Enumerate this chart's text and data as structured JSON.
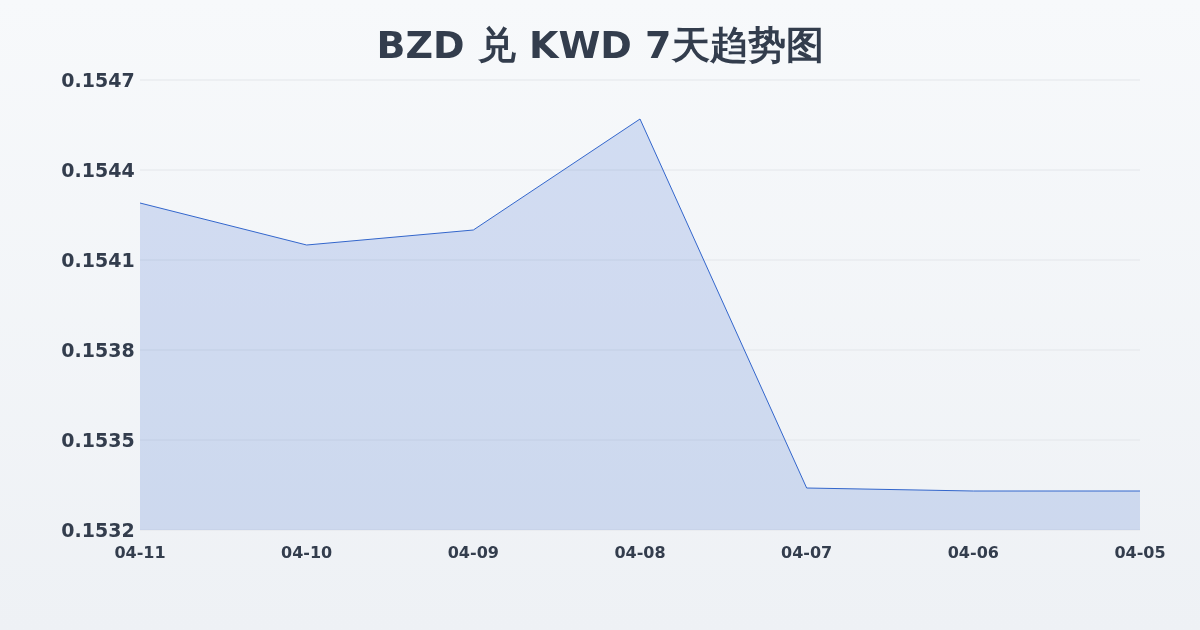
{
  "chart_data": {
    "type": "area",
    "title": "BZD 兑 KWD 7天趋势图",
    "categories": [
      "04-11",
      "04-10",
      "04-09",
      "04-08",
      "04-07",
      "04-06",
      "04-05"
    ],
    "series": [
      {
        "color": "#3366cc",
        "values": [
          0.15429,
          0.15415,
          0.1542,
          0.15457,
          0.15334,
          0.15333,
          0.15333
        ]
      }
    ],
    "ylim": [
      0.1532,
      0.1547
    ],
    "yticks": [
      0.1532,
      0.1535,
      0.1538,
      0.1541,
      0.1544,
      0.1547
    ],
    "grid": "y"
  }
}
